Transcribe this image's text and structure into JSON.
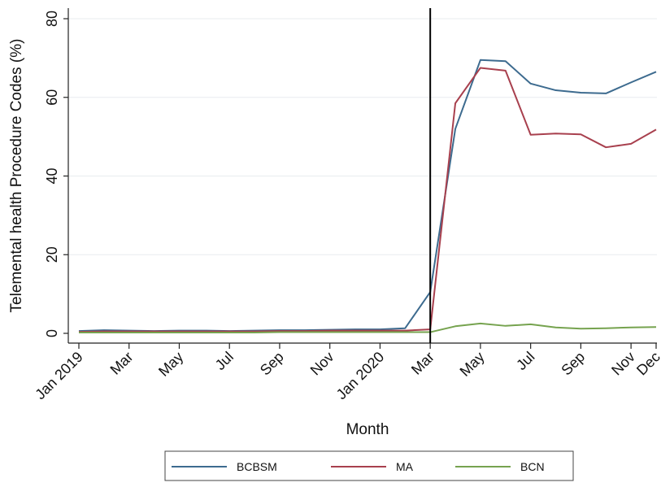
{
  "chart_data": {
    "type": "line",
    "xlabel": "Month",
    "ylabel": "Telemental health Procedure Codes (%)",
    "ylim": [
      0,
      80
    ],
    "y_ticks": [
      0,
      20,
      40,
      60,
      80
    ],
    "x_start": "Jan 2019",
    "x_end": "Dec 2020",
    "x_ticks": [
      {
        "label": "Jan 2019",
        "month": "2019-01"
      },
      {
        "label": "Mar",
        "month": "2019-03"
      },
      {
        "label": "May",
        "month": "2019-05"
      },
      {
        "label": "Jul",
        "month": "2019-07"
      },
      {
        "label": "Sep",
        "month": "2019-09"
      },
      {
        "label": "Nov",
        "month": "2019-11"
      },
      {
        "label": "Jan 2020",
        "month": "2020-01"
      },
      {
        "label": "Mar",
        "month": "2020-03"
      },
      {
        "label": "May",
        "month": "2020-05"
      },
      {
        "label": "Jul",
        "month": "2020-07"
      },
      {
        "label": "Sep",
        "month": "2020-09"
      },
      {
        "label": "Nov",
        "month": "2020-11"
      },
      {
        "label": "Dec",
        "month": "2020-12"
      }
    ],
    "vertical_line": {
      "month": "2020-03",
      "color": "#000000"
    },
    "grid": true,
    "grid_color": "#e8ecef",
    "legend_position": "bottom",
    "x": [
      "2019-01",
      "2019-02",
      "2019-03",
      "2019-04",
      "2019-05",
      "2019-06",
      "2019-07",
      "2019-08",
      "2019-09",
      "2019-10",
      "2019-11",
      "2019-12",
      "2020-01",
      "2020-02",
      "2020-03",
      "2020-04",
      "2020-05",
      "2020-06",
      "2020-07",
      "2020-08",
      "2020-09",
      "2020-10",
      "2020-11",
      "2020-12"
    ],
    "series": [
      {
        "name": "BCBSM",
        "color": "#3d6b8f",
        "values": [
          0.6,
          0.8,
          0.7,
          0.6,
          0.7,
          0.7,
          0.6,
          0.7,
          0.8,
          0.8,
          0.9,
          1.0,
          1.0,
          1.3,
          10.5,
          52.0,
          69.5,
          69.2,
          63.5,
          61.8,
          61.2,
          61.0,
          63.8,
          66.5
        ]
      },
      {
        "name": "MA",
        "color": "#a8404e",
        "values": [
          0.4,
          0.5,
          0.5,
          0.5,
          0.5,
          0.5,
          0.5,
          0.5,
          0.6,
          0.6,
          0.7,
          0.7,
          0.7,
          0.7,
          1.0,
          58.5,
          67.5,
          66.8,
          50.5,
          50.8,
          50.6,
          47.3,
          48.2,
          51.8
        ]
      },
      {
        "name": "BCN",
        "color": "#76a34f",
        "values": [
          0.2,
          0.2,
          0.2,
          0.2,
          0.2,
          0.2,
          0.2,
          0.2,
          0.3,
          0.3,
          0.3,
          0.3,
          0.3,
          0.3,
          0.3,
          1.8,
          2.5,
          1.9,
          2.3,
          1.5,
          1.2,
          1.3,
          1.5,
          1.6
        ]
      }
    ]
  }
}
